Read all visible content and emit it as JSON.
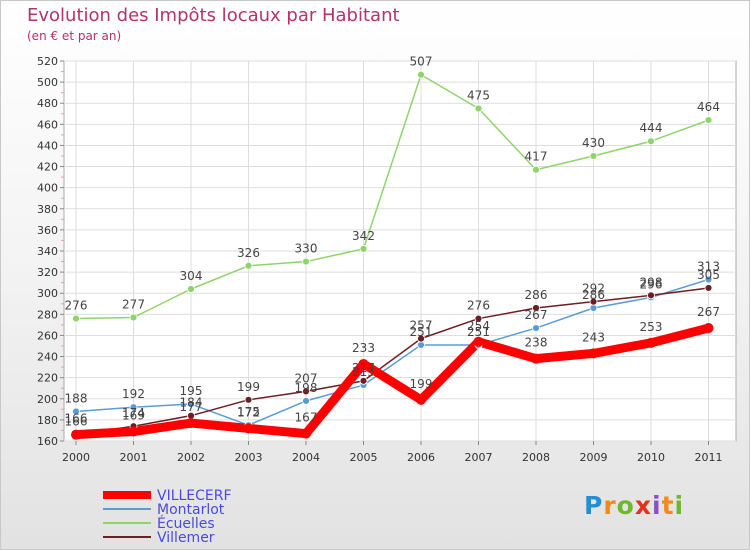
{
  "title": "Evolution des Impôts locaux par Habitant",
  "subtitle": "(en € et par an)",
  "logo_text": "Proxiti",
  "colors": {
    "title": "#b1336f",
    "villecerf": "#ff0000",
    "montarlot": "#5b9bd5",
    "ecuelles": "#8fd46a",
    "villemer": "#6b1f24",
    "legend_text": "#4a4ae0"
  },
  "chart_data": {
    "type": "line",
    "title": "Evolution des Impôts locaux par Habitant",
    "subtitle": "(en € et par an)",
    "xlabel": "",
    "ylabel": "",
    "ylim": [
      160,
      520
    ],
    "ytick_step": 20,
    "grid": true,
    "legend_position": "bottom-left",
    "x": [
      "2000",
      "2001",
      "2002",
      "2003",
      "2004",
      "2005",
      "2006",
      "2007",
      "2008",
      "2009",
      "2010",
      "2011"
    ],
    "yticks": [
      "160",
      "180",
      "200",
      "220",
      "240",
      "260",
      "280",
      "300",
      "320",
      "340",
      "360",
      "380",
      "400",
      "420",
      "440",
      "460",
      "480",
      "500",
      "520"
    ],
    "series": [
      {
        "name": "VILLECERF",
        "color": "#ff0000",
        "values": [
          166,
          169,
          177,
          172,
          167,
          233,
          199,
          254,
          238,
          243,
          253,
          267
        ]
      },
      {
        "name": "Montarlot",
        "color": "#5b9bd5",
        "values": [
          188,
          192,
          195,
          175,
          198,
          213,
          251,
          251,
          267,
          286,
          296,
          313
        ]
      },
      {
        "name": "Écuelles",
        "color": "#8fd46a",
        "values": [
          276,
          277,
          304,
          326,
          330,
          342,
          507,
          475,
          417,
          430,
          444,
          464
        ]
      },
      {
        "name": "Villemer",
        "color": "#6b1f24",
        "values": [
          166,
          174,
          184,
          199,
          207,
          217,
          257,
          276,
          286,
          292,
          298,
          305
        ]
      }
    ]
  }
}
